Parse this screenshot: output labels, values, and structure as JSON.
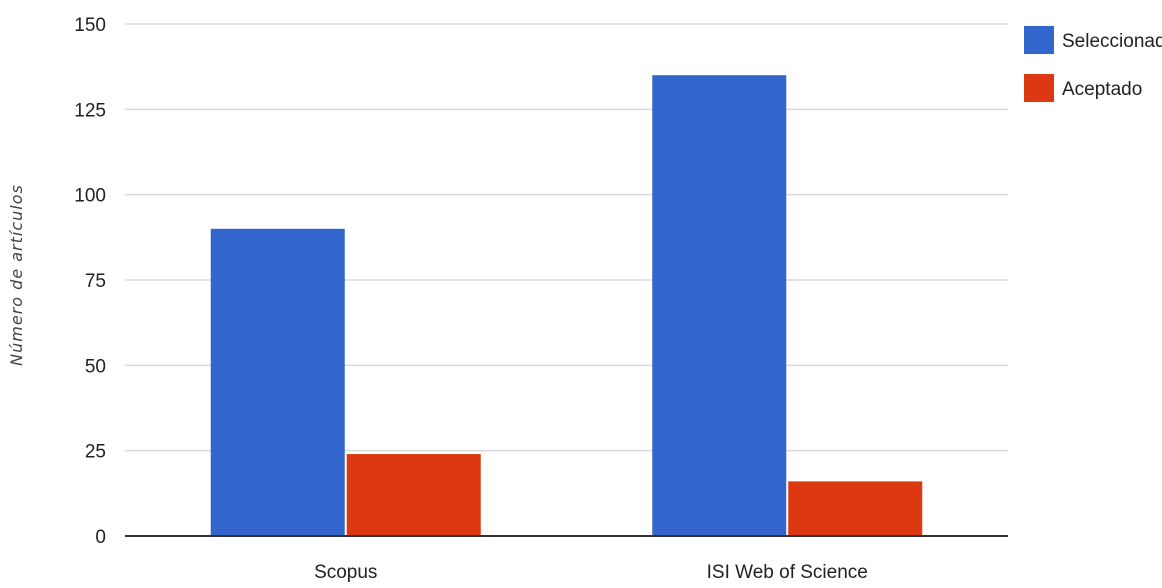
{
  "colors": {
    "seleccionado": "#3366cc",
    "aceptado": "#dc3912",
    "grid": "#d9d9d9",
    "axis": "#333333"
  },
  "chart_data": {
    "type": "bar",
    "categories": [
      "Scopus",
      "ISI Web of Science"
    ],
    "series": [
      {
        "name": "Seleccionado",
        "values": [
          90,
          135
        ]
      },
      {
        "name": "Aceptado",
        "values": [
          24,
          16
        ]
      }
    ],
    "ylabel": "Número de artículos",
    "xlabel": "",
    "ylim": [
      0,
      150
    ],
    "yticks": [
      "0",
      "25",
      "50",
      "75",
      "100",
      "125",
      "150"
    ],
    "grid": true,
    "legend": "top-right"
  }
}
